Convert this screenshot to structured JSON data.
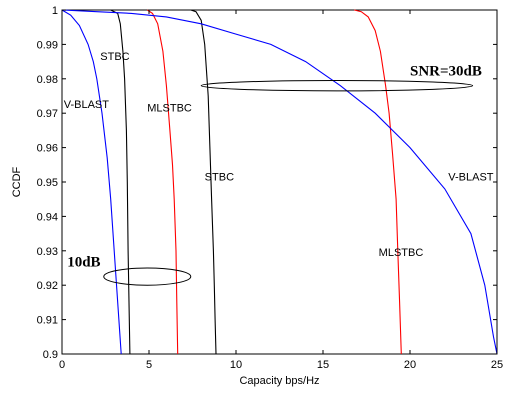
{
  "chart_data": {
    "type": "line",
    "xlabel": "Capacity bps/Hz",
    "ylabel": "CCDF",
    "xlim": [
      0,
      25
    ],
    "ylim": [
      0.9,
      1.0
    ],
    "xticks": [
      0,
      5,
      10,
      15,
      20,
      25
    ],
    "yticks": [
      0.9,
      0.91,
      0.92,
      0.93,
      0.94,
      0.95,
      0.96,
      0.97,
      0.98,
      0.99,
      1
    ],
    "grid": false,
    "series": [
      {
        "group": "10dB",
        "label": "V-BLAST",
        "color": "#0000ff",
        "x": [
          0,
          0.5,
          1.0,
          1.5,
          1.8,
          2.0,
          2.3,
          2.6,
          2.8,
          3.0,
          3.2,
          3.4
        ],
        "y": [
          1.0,
          0.9985,
          0.9955,
          0.99,
          0.985,
          0.98,
          0.97,
          0.957,
          0.945,
          0.93,
          0.915,
          0.9
        ]
      },
      {
        "group": "10dB",
        "label": "STBC",
        "color": "#000000",
        "x": [
          2.8,
          3.0,
          3.2,
          3.35,
          3.5,
          3.6,
          3.7,
          3.75,
          3.8,
          3.85,
          3.9
        ],
        "y": [
          1.0,
          0.9995,
          0.999,
          0.996,
          0.988,
          0.98,
          0.965,
          0.95,
          0.93,
          0.915,
          0.9
        ]
      },
      {
        "group": "10dB",
        "label": "MLSTBC",
        "color": "#ff0000",
        "x": [
          4.9,
          5.2,
          5.5,
          5.8,
          6.0,
          6.2,
          6.35,
          6.45,
          6.55,
          6.6,
          6.65
        ],
        "y": [
          1.0,
          0.999,
          0.996,
          0.988,
          0.978,
          0.965,
          0.955,
          0.945,
          0.93,
          0.915,
          0.9
        ]
      },
      {
        "group": "SNR=30dB",
        "label": "STBC",
        "color": "#000000",
        "x": [
          7.4,
          7.7,
          8.0,
          8.2,
          8.4,
          8.5,
          8.6,
          8.7,
          8.75,
          8.8,
          8.85
        ],
        "y": [
          1.0,
          0.9995,
          0.997,
          0.99,
          0.975,
          0.96,
          0.945,
          0.93,
          0.92,
          0.91,
          0.9
        ]
      },
      {
        "group": "SNR=30dB",
        "label": "MLSTBC",
        "color": "#ff0000",
        "x": [
          16.8,
          17.2,
          17.6,
          18.0,
          18.3,
          18.6,
          18.8,
          19.0,
          19.2,
          19.3,
          19.4,
          19.5
        ],
        "y": [
          1.0,
          0.9995,
          0.998,
          0.994,
          0.988,
          0.978,
          0.97,
          0.958,
          0.945,
          0.93,
          0.915,
          0.9
        ]
      },
      {
        "group": "SNR=30dB",
        "label": "V-BLAST",
        "color": "#0000ff",
        "x": [
          0,
          2,
          4,
          6,
          8,
          10,
          12,
          14,
          16,
          18,
          20,
          22,
          23.5,
          24.3,
          24.8,
          25.0
        ],
        "y": [
          1.0,
          0.9995,
          0.999,
          0.998,
          0.996,
          0.993,
          0.99,
          0.985,
          0.978,
          0.97,
          0.96,
          0.948,
          0.935,
          0.92,
          0.905,
          0.9
        ]
      }
    ],
    "annotations": [
      {
        "text": "STBC",
        "x": 2.2,
        "y": 0.9855,
        "style": "normal"
      },
      {
        "text": "V-BLAST",
        "x": 0.1,
        "y": 0.9715,
        "style": "normal"
      },
      {
        "text": "MLSTBC",
        "x": 4.9,
        "y": 0.9705,
        "style": "normal"
      },
      {
        "text": "STBC",
        "x": 8.2,
        "y": 0.9505,
        "style": "normal"
      },
      {
        "text": "V-BLAST",
        "x": 22.2,
        "y": 0.9505,
        "style": "normal"
      },
      {
        "text": "MLSTBC",
        "x": 18.2,
        "y": 0.9285,
        "style": "normal"
      },
      {
        "text": "SNR=30dB",
        "x": 20.0,
        "y": 0.981,
        "style": "bold"
      },
      {
        "text": "10dB",
        "x": 0.3,
        "y": 0.9255,
        "style": "bold"
      }
    ],
    "ellipses": [
      {
        "group": "SNR=30dB",
        "cx": 15.8,
        "cy": 0.978,
        "rx": 7.8,
        "ry": 0.0015
      },
      {
        "group": "10dB",
        "cx": 4.9,
        "cy": 0.9225,
        "rx": 2.5,
        "ry": 0.0025
      }
    ]
  }
}
